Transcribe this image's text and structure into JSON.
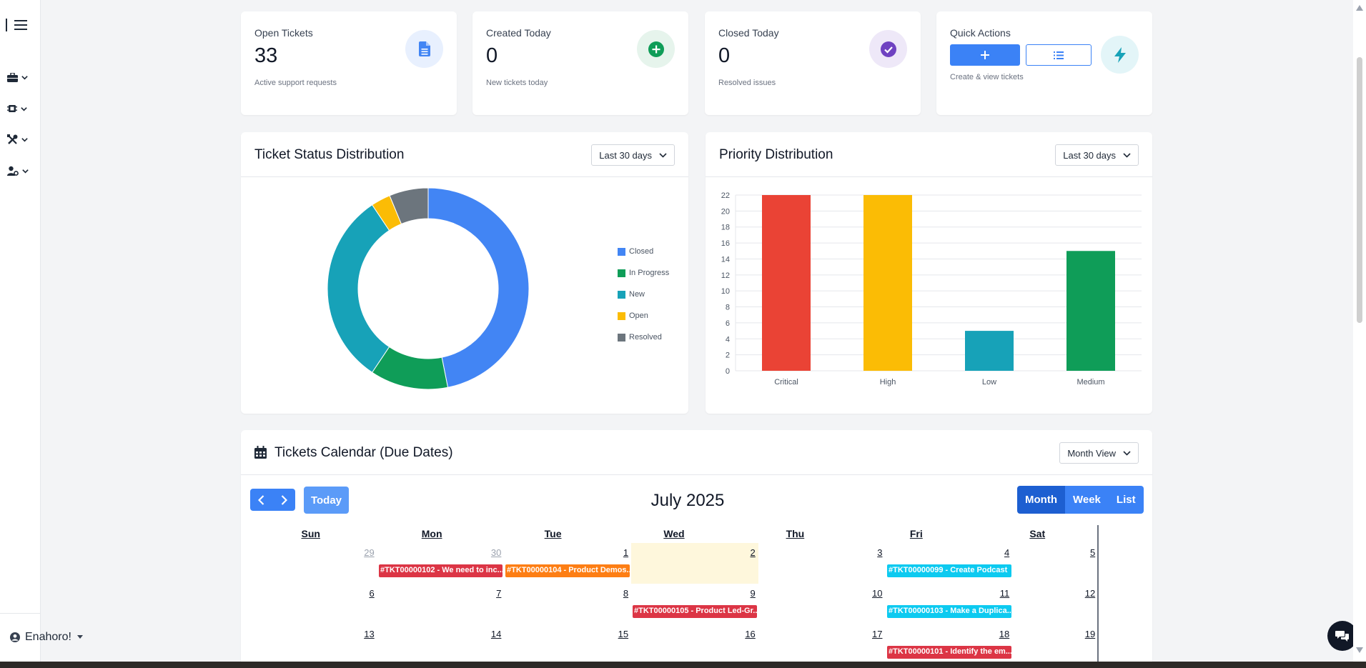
{
  "user": {
    "name": "Enahoro!"
  },
  "stats": [
    {
      "title": "Open Tickets",
      "value": "33",
      "subtitle": "Active support requests",
      "icon": "document-icon"
    },
    {
      "title": "Created Today",
      "value": "0",
      "subtitle": "New tickets today",
      "icon": "plus-circle-icon"
    },
    {
      "title": "Closed Today",
      "value": "0",
      "subtitle": "Resolved issues",
      "icon": "check-circle-icon"
    }
  ],
  "quick_actions": {
    "title": "Quick Actions",
    "subtitle": "Create & view tickets",
    "icon": "lightning-icon"
  },
  "status_panel": {
    "title": "Ticket Status Distribution",
    "range": "Last 30 days"
  },
  "priority_panel": {
    "title": "Priority Distribution",
    "range": "Last 30 days"
  },
  "colors": {
    "closed": "#4285f4",
    "in_progress": "#0f9d58",
    "new": "#17a2b8",
    "open": "#fbbc05",
    "resolved": "#6c757d",
    "critical": "#ea4335",
    "high": "#fbbc05",
    "low": "#17a2b8",
    "medium": "#0f9d58"
  },
  "chart_data": [
    {
      "type": "pie",
      "labels": [
        "Closed",
        "In Progress",
        "New",
        "Open",
        "Resolved"
      ],
      "values": [
        15,
        4,
        10,
        1,
        2
      ]
    },
    {
      "type": "bar",
      "categories": [
        "Critical",
        "High",
        "Low",
        "Medium"
      ],
      "values": [
        22,
        22,
        5,
        15
      ],
      "ylim": [
        0,
        22
      ],
      "yticks": [
        "0",
        "2",
        "4",
        "6",
        "8",
        "10",
        "12",
        "14",
        "16",
        "18",
        "20",
        "22"
      ],
      "grid": true
    }
  ],
  "calendar": {
    "title": "Tickets Calendar (Due Dates)",
    "view_select": "Month View",
    "today_label": "Today",
    "month_label": "July 2025",
    "views": [
      "Month",
      "Week",
      "List"
    ],
    "days_of_week": [
      "Sun",
      "Mon",
      "Tue",
      "Wed",
      "Thu",
      "Fri",
      "Sat"
    ],
    "weeks": [
      [
        "29",
        "30",
        "1",
        "2",
        "3",
        "4",
        "5"
      ],
      [
        "6",
        "7",
        "8",
        "9",
        "10",
        "11",
        "12"
      ],
      [
        "13",
        "14",
        "15",
        "16",
        "17",
        "18",
        "19"
      ]
    ],
    "events": [
      {
        "label": "#TKT00000102 - We need to inc...",
        "color": "#dc3545"
      },
      {
        "label": "#TKT00000104 - Product Demos...",
        "color": "#fd7e14"
      },
      {
        "label": "#TKT00000099 - Create Podcast",
        "color": "#0dcaf0"
      },
      {
        "label": "#TKT00000105 - Product Led-Gr...",
        "color": "#dc3545"
      },
      {
        "label": "#TKT00000103 - Make a Duplica...",
        "color": "#0dcaf0"
      },
      {
        "label": "#TKT00000101 - Identify the em...",
        "color": "#dc3545"
      }
    ]
  }
}
